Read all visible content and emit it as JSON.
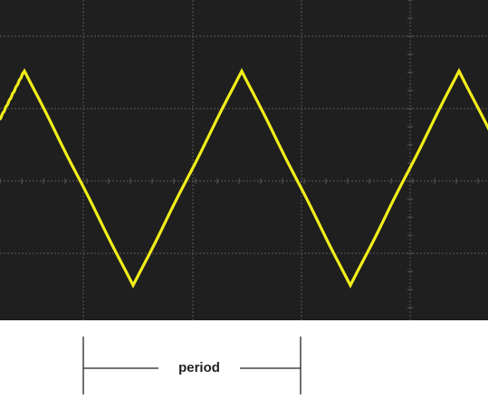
{
  "scope": {
    "background_color": "#1f1f1f",
    "grid_color": "#5a5a5a",
    "trace_color": "#f2ee1a",
    "waveform": "triangle",
    "grid_divisions": {
      "horizontal": 6,
      "vertical": 5
    },
    "trace_cycles_visible": 2.2
  },
  "annotation": {
    "label": "period",
    "line_color": "#222222"
  }
}
